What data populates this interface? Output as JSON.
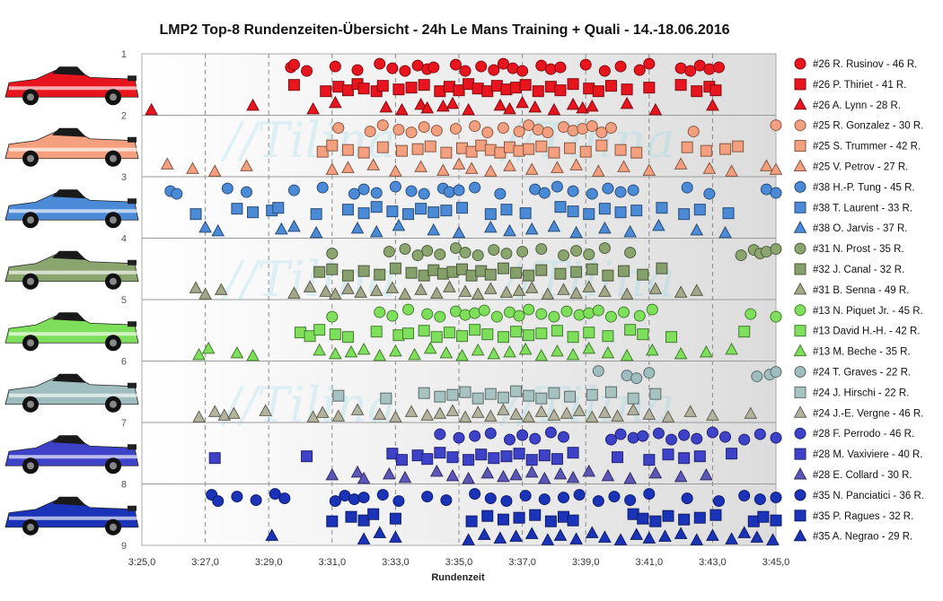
{
  "chart_data": {
    "type": "scatter",
    "title": "LMP2  Top-8  Rundenzeiten-Übersicht   - 24h Le Mans  Training   + Quali  - 14.-18.06.2016",
    "xlabel": "Rundenzeit",
    "x_ticks": [
      "3:25,0",
      "3:27,0",
      "3:29,0",
      "3:31,0",
      "3:33,0",
      "3:35,0",
      "3:37,0",
      "3:39,0",
      "3:41,0",
      "3:43,0",
      "3:45,0"
    ],
    "x_tick_seconds": [
      205,
      207,
      209,
      211,
      213,
      215,
      217,
      219,
      221,
      223,
      225
    ],
    "xlim_seconds": [
      205,
      225
    ],
    "y_ticks": [
      "1",
      "2",
      "3",
      "4",
      "5",
      "6",
      "7",
      "8",
      "9"
    ],
    "ylim": [
      1,
      9
    ],
    "y_reversed": true,
    "grid": "dashed vertical lines, solid horizontal lines",
    "legend_position": "right",
    "series": [
      {
        "name": "#26 R. Rusinov - 46 R.",
        "marker": "circle",
        "color": "#e8141e",
        "band": 1,
        "lane": 0,
        "x": [
          209.7,
          209.8,
          210.2,
          211.1,
          211.8,
          212.5,
          212.9,
          213.3,
          213.7,
          214.0,
          214.2,
          214.9,
          215.2,
          215.7,
          216.1,
          216.4,
          216.7,
          217.0,
          217.6,
          217.9,
          218.2,
          219.0,
          219.6,
          220.1,
          220.7,
          221.0,
          222.0,
          222.3,
          222.6,
          222.9,
          223.2
        ]
      },
      {
        "name": "#26 P. Thiriet - 41 R.",
        "marker": "square",
        "color": "#e8141e",
        "band": 1,
        "lane": 1,
        "x": [
          209.8,
          210.8,
          211.2,
          211.5,
          211.8,
          212.0,
          212.4,
          212.6,
          213.1,
          213.5,
          213.9,
          214.4,
          214.7,
          215.0,
          215.3,
          215.6,
          215.9,
          216.2,
          216.5,
          216.8,
          217.1,
          217.5,
          217.9,
          218.2,
          218.6,
          219.1,
          219.4,
          219.8,
          220.3,
          221.0,
          222.0,
          222.5,
          222.9,
          223.1
        ]
      },
      {
        "name": "#26 A. Lynn - 28 R.",
        "marker": "triangle",
        "color": "#e8141e",
        "band": 1,
        "lane": 2,
        "x": [
          205.3,
          208.5,
          210.4,
          211.1,
          212.7,
          213.2,
          213.8,
          214.0,
          214.5,
          214.8,
          215.3,
          216.3,
          216.6,
          217.0,
          217.4,
          218.0,
          218.6,
          218.9,
          219.2,
          220.3,
          221.2,
          223.0
        ]
      },
      {
        "name": "#25 R. Gonzalez - 30 R.",
        "marker": "circle",
        "color": "#f4a07e",
        "band": 2,
        "lane": 0,
        "x": [
          211.2,
          212.2,
          212.6,
          213.1,
          213.5,
          213.9,
          214.3,
          214.9,
          215.5,
          215.9,
          216.4,
          216.9,
          217.2,
          217.5,
          217.8,
          218.3,
          218.6,
          218.9,
          219.2,
          219.5,
          219.8,
          222.4,
          225.0
        ]
      },
      {
        "name": "#25 S. Trummer - 42 R.",
        "marker": "square",
        "color": "#f4a07e",
        "band": 2,
        "lane": 1,
        "x": [
          210.7,
          211.0,
          211.5,
          212.0,
          212.6,
          213.2,
          213.7,
          214.1,
          214.6,
          215.1,
          215.4,
          215.7,
          216.0,
          216.3,
          216.6,
          216.9,
          217.2,
          217.6,
          218.0,
          218.5,
          219.0,
          219.5,
          220.1,
          220.6,
          222.2,
          222.8,
          223.4,
          223.8
        ]
      },
      {
        "name": "#25 V. Petrov - 27 R.",
        "marker": "triangle",
        "color": "#f4a07e",
        "band": 2,
        "lane": 2,
        "x": [
          205.8,
          206.6,
          207.3,
          208.3,
          211.0,
          211.5,
          212.3,
          213.0,
          213.8,
          214.5,
          215.0,
          215.4,
          216.0,
          216.6,
          217.3,
          218.1,
          218.7,
          219.4,
          220.2,
          221.0,
          222.0,
          222.9,
          223.6,
          224.7,
          225.0
        ]
      },
      {
        "name": "#38 H.-P. Tung - 45 R.",
        "marker": "circle",
        "color": "#4b8ad6",
        "band": 3,
        "lane": 0,
        "x": [
          205.9,
          206.1,
          207.7,
          208.3,
          209.8,
          210.7,
          211.7,
          212.0,
          212.4,
          213.0,
          213.5,
          213.9,
          214.5,
          214.7,
          215.0,
          215.5,
          216.3,
          217.4,
          217.7,
          218.1,
          218.6,
          219.2,
          219.7,
          220.1,
          220.5,
          222.2,
          222.9,
          224.7,
          225.0
        ]
      },
      {
        "name": "#38 T. Laurent - 33 R.",
        "marker": "square",
        "color": "#4b8ad6",
        "band": 3,
        "lane": 1,
        "x": [
          206.7,
          208.0,
          208.5,
          209.1,
          209.3,
          210.5,
          211.5,
          212.0,
          212.4,
          212.9,
          213.4,
          213.8,
          214.2,
          214.6,
          215.1,
          216.0,
          216.5,
          217.1,
          218.2,
          218.6,
          219.1,
          219.6,
          220.1,
          220.6,
          221.4,
          222.1,
          222.6,
          223.5
        ]
      },
      {
        "name": "#38 O. Jarvis - 37 R.",
        "marker": "triangle",
        "color": "#4b8ad6",
        "band": 3,
        "lane": 2,
        "x": [
          207.0,
          207.4,
          209.4,
          209.8,
          210.5,
          211.8,
          212.4,
          213.1,
          214.2,
          215.0,
          216.0,
          216.6,
          217.3,
          218.0,
          218.7,
          219.6,
          220.4,
          221.3,
          222.5,
          223.4
        ]
      },
      {
        "name": "#31 N. Prost - 35 R.",
        "marker": "circle",
        "color": "#8aa66e",
        "band": 4,
        "lane": 0,
        "x": [
          211.0,
          212.8,
          213.3,
          213.7,
          214.0,
          214.4,
          214.9,
          215.2,
          215.6,
          216.1,
          216.5,
          217.0,
          217.6,
          218.3,
          218.7,
          219.1,
          219.6,
          220.4,
          223.9,
          224.3,
          224.5,
          224.7,
          225.0
        ]
      },
      {
        "name": "#32 J. Canal - 32 R.",
        "marker": "square",
        "color": "#86a06b",
        "band": 4,
        "lane": 1,
        "x": [
          210.6,
          211.0,
          211.5,
          212.0,
          212.5,
          213.0,
          213.5,
          213.9,
          214.2,
          214.5,
          214.8,
          215.1,
          215.4,
          215.7,
          216.0,
          216.4,
          216.8,
          217.2,
          217.6,
          218.2,
          218.7,
          219.2,
          219.7,
          220.2,
          220.8,
          221.4
        ]
      },
      {
        "name": "#31 B. Senna - 49 R.",
        "marker": "triangle",
        "color": "#a3a888",
        "band": 4,
        "lane": 2,
        "x": [
          206.7,
          207.0,
          207.5,
          209.8,
          210.3,
          210.8,
          211.1,
          211.5,
          211.9,
          212.4,
          212.9,
          213.3,
          213.8,
          214.3,
          214.7,
          215.2,
          215.6,
          216.0,
          216.5,
          216.9,
          217.3,
          217.8,
          218.3,
          218.7,
          219.1,
          219.6,
          220.3,
          221.2,
          222.0,
          222.5
        ]
      },
      {
        "name": "#13 N. Piquet Jr. - 45 R.",
        "marker": "circle",
        "color": "#7ee05a",
        "band": 5,
        "lane": 0,
        "x": [
          211.0,
          212.5,
          212.9,
          213.4,
          214.0,
          214.4,
          214.9,
          215.2,
          215.5,
          215.8,
          216.2,
          216.6,
          216.9,
          217.2,
          217.6,
          218.0,
          218.4,
          218.8,
          219.1,
          219.4,
          219.8,
          220.2,
          220.7,
          221.1,
          224.2,
          225.0
        ]
      },
      {
        "name": "#13 David H.-H. - 42 R.",
        "marker": "square",
        "color": "#7ee05a",
        "band": 5,
        "lane": 1,
        "x": [
          210.0,
          210.3,
          210.6,
          211.1,
          211.5,
          212.4,
          213.1,
          213.4,
          213.9,
          214.3,
          214.7,
          215.1,
          215.5,
          215.9,
          216.4,
          216.8,
          217.2,
          217.6,
          218.1,
          218.6,
          219.1,
          219.7,
          220.4,
          220.8,
          221.7,
          224.0
        ]
      },
      {
        "name": "#13 M. Beche - 35 R.",
        "marker": "triangle",
        "color": "#7ee05a",
        "band": 5,
        "lane": 2,
        "x": [
          206.8,
          207.1,
          208.0,
          208.5,
          210.6,
          211.1,
          211.6,
          212.0,
          212.5,
          213.0,
          213.6,
          214.1,
          214.6,
          215.1,
          215.6,
          216.1,
          216.6,
          217.1,
          217.6,
          218.1,
          218.6,
          219.1,
          219.7,
          220.3,
          221.1,
          222.0,
          222.8,
          223.6
        ]
      },
      {
        "name": "#24 T. Graves - 22 R.",
        "marker": "circle",
        "color": "#9fbdbe",
        "band": 6,
        "lane": 0,
        "x": [
          219.4,
          220.3,
          220.6,
          221.0,
          224.4,
          224.8,
          225.0
        ]
      },
      {
        "name": "#24 J. Hirschi - 22 R.",
        "marker": "square",
        "color": "#a7c3c1",
        "band": 6,
        "lane": 1,
        "x": [
          211.2,
          212.7,
          213.9,
          214.4,
          214.8,
          215.2,
          215.6,
          216.0,
          216.4,
          216.8,
          217.2,
          217.6,
          218.0,
          218.5,
          219.2,
          219.8,
          220.5,
          221.2
        ]
      },
      {
        "name": "#24 J.-E. Vergne - 46 R.",
        "marker": "triangle",
        "color": "#b3b29c",
        "band": 6,
        "lane": 2,
        "x": [
          206.8,
          207.3,
          207.6,
          207.9,
          208.9,
          210.4,
          210.7,
          211.2,
          211.8,
          212.5,
          213.0,
          213.5,
          214.0,
          214.4,
          214.8,
          215.2,
          215.6,
          216.0,
          216.4,
          216.8,
          217.2,
          217.6,
          218.0,
          218.4,
          218.8,
          219.2,
          219.6,
          220.0,
          220.5,
          221.0,
          221.6,
          222.3,
          223.0,
          224.2
        ]
      },
      {
        "name": "#28 F. Perrodo - 46 R.",
        "marker": "circle",
        "color": "#3d42c9",
        "band": 7,
        "lane": 0,
        "x": [
          214.4,
          215.0,
          215.5,
          216.0,
          216.6,
          217.0,
          217.4,
          217.9,
          218.3,
          219.8,
          220.1,
          220.5,
          220.8,
          221.3,
          221.7,
          222.1,
          222.5,
          223.0,
          223.4,
          224.0,
          224.5,
          225.0
        ]
      },
      {
        "name": "#28 M. Vaxiviere - 40 R.",
        "marker": "square",
        "color": "#3d42c9",
        "band": 7,
        "lane": 1,
        "x": [
          207.3,
          210.2,
          212.9,
          213.2,
          213.7,
          214.0,
          214.4,
          214.8,
          215.3,
          215.7,
          216.1,
          216.5,
          216.9,
          217.3,
          217.7,
          218.1,
          218.6,
          220.0,
          221.0,
          221.6,
          222.1,
          222.6,
          223.6
        ]
      },
      {
        "name": "#28 E. Collard - 30 R.",
        "marker": "triangle",
        "color": "#5b56b7",
        "band": 7,
        "lane": 2,
        "x": [
          211.0,
          211.8,
          212.0,
          212.8,
          213.3,
          214.3,
          214.8,
          215.3,
          215.9,
          216.4,
          216.8,
          217.3,
          217.7,
          218.2,
          218.6,
          219.1,
          219.7,
          220.4,
          221.2,
          222.0,
          222.8
        ]
      },
      {
        "name": "#35 N. Panciatici - 36 R.",
        "marker": "circle",
        "color": "#1a33b8",
        "band": 8,
        "lane": 0,
        "x": [
          207.2,
          207.4,
          208.0,
          208.6,
          209.2,
          209.5,
          211.1,
          211.4,
          211.7,
          212.0,
          212.6,
          213.1,
          214.0,
          214.6,
          215.5,
          216.0,
          216.5,
          217.1,
          217.7,
          218.3,
          218.8,
          219.4,
          219.9,
          220.4,
          221.0,
          222.2,
          223.2,
          224.0,
          224.5,
          225.0
        ]
      },
      {
        "name": "#35 P. Ragues - 32 R.",
        "marker": "square",
        "color": "#1a33b8",
        "band": 8,
        "lane": 1,
        "x": [
          211.0,
          211.6,
          212.0,
          212.3,
          213.0,
          215.4,
          215.9,
          216.4,
          216.9,
          217.4,
          217.9,
          218.3,
          218.6,
          220.5,
          220.8,
          221.2,
          221.6,
          222.1,
          222.6,
          223.1,
          224.3,
          224.6,
          225.0
        ]
      },
      {
        "name": "#35 A. Negrao - 29 R.",
        "marker": "triangle",
        "color": "#1a33b8",
        "band": 8,
        "lane": 2,
        "x": [
          209.1,
          212.0,
          212.5,
          213.0,
          215.3,
          215.8,
          216.3,
          216.8,
          217.3,
          217.8,
          218.2,
          218.7,
          219.2,
          219.6,
          220.1,
          220.6,
          221.0,
          221.5,
          222.0,
          222.5,
          223.0,
          223.6,
          224.0,
          224.4,
          224.9
        ]
      }
    ]
  },
  "watermark": "//Tilina"
}
